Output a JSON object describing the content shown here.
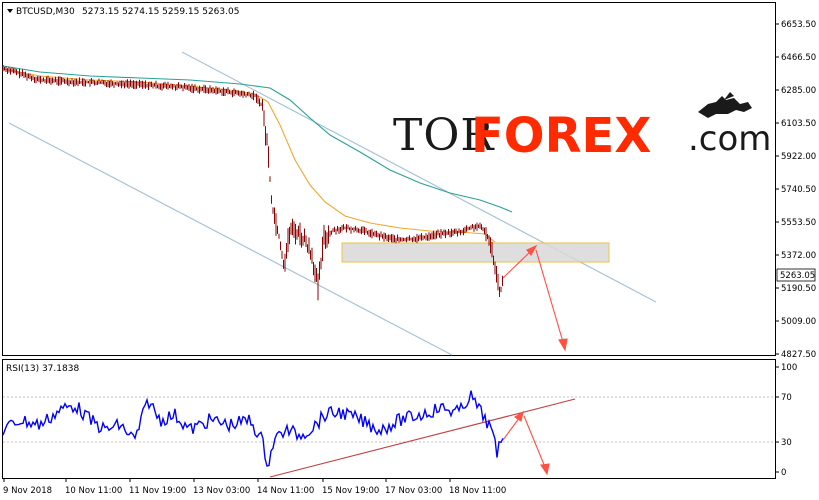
{
  "header": {
    "symbol_label": "BTCUSD,M30",
    "ohlc": "5273.15 5274.15 5259.15 5263.05"
  },
  "logo": {
    "part1": "TOR",
    "part2": "FOREX",
    "part3": ".com"
  },
  "indicator": {
    "label": "RSI(13) 37.1838"
  },
  "price_axis": {
    "ticks": [
      "6653.50",
      "6466.50",
      "6285.00",
      "6103.50",
      "5922.00",
      "5740.50",
      "5553.50",
      "5372.00",
      "5190.50",
      "5009.00",
      "4827.50"
    ],
    "current_price": "5263.05"
  },
  "rsi_axis": {
    "ticks": [
      "100",
      "70",
      "30",
      "0"
    ]
  },
  "time_axis": {
    "labels": [
      "9 Nov 2018",
      "10 Nov 11:00",
      "11 Nov 19:00",
      "13 Nov 03:00",
      "14 Nov 11:00",
      "15 Nov 19:00",
      "17 Nov 03:00",
      "18 Nov 11:00"
    ]
  },
  "colors": {
    "candles": "#8b0000",
    "ma_fast": "#f0a830",
    "ma_slow": "#2aa198",
    "channel": "#a8c4d8",
    "rsi": "#0000ff",
    "trend": "#c04040",
    "arrow": "#ff5040",
    "zone_fill": "#d8d8d8",
    "zone_stroke": "#f0c040"
  }
}
